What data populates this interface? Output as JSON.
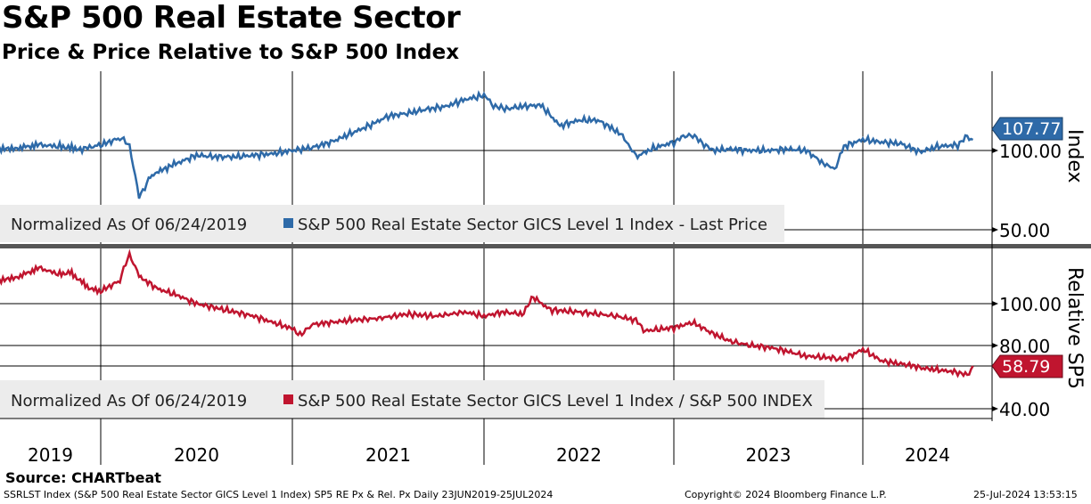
{
  "title": "S&P 500 Real Estate Sector",
  "subtitle": "Price & Price Relative to S&P 500 Index",
  "source": "Source: CHARTbeat",
  "footer": {
    "description": "SSRLST Index (S&P 500 Real Estate Sector GICS Level 1 Index) SP5 RE Px & Rel. Px  Daily 23JUN2019-25JUL2024",
    "copyright": "Copyright© 2024 Bloomberg Finance L.P.",
    "timestamp": "25-Jul-2024 13:53:15"
  },
  "colors": {
    "price": "#2e6aa8",
    "relative": "#c0152f",
    "legend_bg": "#ececec"
  },
  "chart_data": [
    {
      "type": "line",
      "panel": "top",
      "ylabel": "Index",
      "yticks": [
        "100.00",
        "50.00"
      ],
      "ytick_values": [
        100,
        50
      ],
      "legend_prefix": "Normalized As Of 06/24/2019",
      "legend": "S&P 500 Real Estate Sector GICS Level 1 Index - Last Price",
      "last_value_label": "107.77",
      "last_value": 107.77,
      "x": [
        2019.48,
        2019.6,
        2019.7,
        2019.8,
        2019.9,
        2020.0,
        2020.1,
        2020.15,
        2020.2,
        2020.25,
        2020.32,
        2020.4,
        2020.5,
        2020.6,
        2020.7,
        2020.8,
        2020.9,
        2021.0,
        2021.1,
        2021.2,
        2021.3,
        2021.4,
        2021.5,
        2021.6,
        2021.7,
        2021.8,
        2021.9,
        2022.0,
        2022.05,
        2022.1,
        2022.2,
        2022.3,
        2022.4,
        2022.5,
        2022.6,
        2022.7,
        2022.75,
        2022.8,
        2022.9,
        2023.0,
        2023.08,
        2023.15,
        2023.2,
        2023.3,
        2023.4,
        2023.5,
        2023.6,
        2023.7,
        2023.8,
        2023.85,
        2023.9,
        2024.0,
        2024.1,
        2024.2,
        2024.3,
        2024.4,
        2024.5,
        2024.55,
        2024.58
      ],
      "values": [
        100,
        102,
        104,
        103,
        101,
        104,
        109,
        104,
        70,
        82,
        88,
        92,
        97,
        96,
        96,
        97,
        98,
        100,
        102,
        106,
        112,
        118,
        125,
        127,
        130,
        132,
        137,
        140,
        133,
        130,
        132,
        133,
        118,
        122,
        122,
        114,
        107,
        96,
        102,
        106,
        112,
        106,
        100,
        101,
        100,
        100,
        101,
        100,
        91,
        88,
        103,
        108,
        106,
        105,
        99,
        103,
        104,
        110,
        107.77
      ],
      "xlim": [
        2019.48,
        2024.68
      ],
      "categories": [
        "2019",
        "2020",
        "2021",
        "2022",
        "2023",
        "2024"
      ]
    },
    {
      "type": "line",
      "panel": "bottom",
      "ylabel": "Relative SP5",
      "yticks": [
        "100.00",
        "80.00",
        "40.00"
      ],
      "ytick_values": [
        100,
        80,
        40
      ],
      "legend_prefix": "Normalized As Of 06/24/2019",
      "legend": "S&P 500 Real Estate Sector GICS Level 1 Index / S&P 500 INDEX",
      "last_value_label": "58.79",
      "last_value": 58.79,
      "x": [
        2019.48,
        2019.6,
        2019.7,
        2019.8,
        2019.85,
        2019.95,
        2020.0,
        2020.1,
        2020.15,
        2020.2,
        2020.3,
        2020.4,
        2020.5,
        2020.65,
        2020.8,
        2020.9,
        2021.0,
        2021.05,
        2021.1,
        2021.3,
        2021.45,
        2021.6,
        2021.75,
        2021.9,
        2022.0,
        2022.1,
        2022.2,
        2022.26,
        2022.35,
        2022.5,
        2022.7,
        2022.8,
        2022.85,
        2023.0,
        2023.1,
        2023.2,
        2023.3,
        2023.5,
        2023.6,
        2023.7,
        2023.85,
        2023.9,
        2024.0,
        2024.1,
        2024.2,
        2024.3,
        2024.4,
        2024.5,
        2024.55,
        2024.58
      ],
      "values": [
        110,
        113,
        117,
        114,
        115,
        107,
        106,
        111,
        124,
        113,
        107,
        104,
        100,
        97,
        94,
        91,
        88,
        85,
        90,
        92,
        93,
        95,
        94,
        96,
        94,
        96,
        95,
        103,
        97,
        96,
        94,
        92,
        87,
        88.5,
        91,
        86,
        82,
        78.2,
        74,
        69,
        67,
        66,
        76,
        64,
        61,
        58,
        57,
        56,
        54.5,
        58.79
      ],
      "xlim": [
        2019.48,
        2024.68
      ],
      "categories": [
        "2019",
        "2020",
        "2021",
        "2022",
        "2023",
        "2024"
      ]
    }
  ]
}
